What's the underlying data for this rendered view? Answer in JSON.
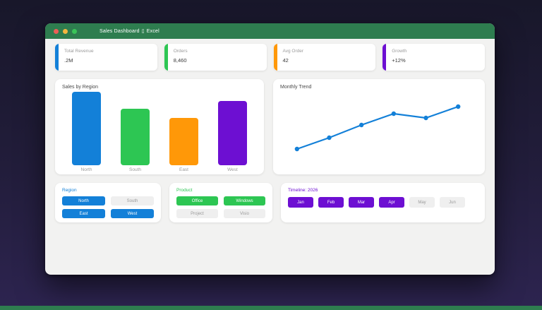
{
  "window": {
    "title_name": "Sales Dashboard",
    "title_separator": "▯",
    "title_app": "Excel",
    "titlebar_color": "#2e7d4f"
  },
  "traffic_lights": {
    "close_color": "#ed5f57",
    "minimize_color": "#f4b63f",
    "maximize_color": "#3ac459"
  },
  "kpis": [
    {
      "label": "Total Revenue",
      "value": ".2M",
      "accent": "#1380d8"
    },
    {
      "label": "Orders",
      "value": "8,460",
      "accent": "#2dc653"
    },
    {
      "label": "Avg Order",
      "value": "42",
      "accent": "#ff9808"
    },
    {
      "label": "Growth",
      "value": "+12%",
      "accent": "#6d0fd2"
    }
  ],
  "chart_data": [
    {
      "type": "bar",
      "title": "Sales by Region",
      "categories": [
        "North",
        "South",
        "East",
        "West"
      ],
      "values": [
        100,
        77,
        65,
        88
      ],
      "colors": [
        "#1380d8",
        "#2dc653",
        "#ff9808",
        "#6d0fd2"
      ],
      "ylim": [
        0,
        106
      ],
      "grid": false,
      "legend": false
    },
    {
      "type": "line",
      "title": "Monthly Trend",
      "x": [
        1,
        2,
        3,
        4,
        5,
        6
      ],
      "values": [
        30,
        38,
        47,
        55,
        52,
        60
      ],
      "color": "#1380d8",
      "ylim": [
        30,
        60
      ],
      "grid": false,
      "legend": false,
      "markers": true
    }
  ],
  "filters": [
    {
      "title": "Region",
      "accent": "#1380d8",
      "layout": "grid",
      "options": [
        {
          "label": "North",
          "selected": true
        },
        {
          "label": "South",
          "selected": false
        },
        {
          "label": "East",
          "selected": true
        },
        {
          "label": "West",
          "selected": true
        }
      ]
    },
    {
      "title": "Product",
      "accent": "#2dc653",
      "layout": "grid",
      "options": [
        {
          "label": "Office",
          "selected": true
        },
        {
          "label": "Windows",
          "selected": true
        },
        {
          "label": "Project",
          "selected": false
        },
        {
          "label": "Visio",
          "selected": false
        }
      ]
    },
    {
      "title": "Timeline: 2026",
      "accent": "#6d0fd2",
      "layout": "row",
      "options": [
        {
          "label": "Jan",
          "selected": true
        },
        {
          "label": "Feb",
          "selected": true
        },
        {
          "label": "Mar",
          "selected": true
        },
        {
          "label": "Apr",
          "selected": true
        },
        {
          "label": "May",
          "selected": false
        },
        {
          "label": "Jun",
          "selected": false
        }
      ]
    }
  ],
  "colors": {
    "background_top": "#18172a",
    "background_bottom": "#2d2450",
    "titlebar_green": "#2e7d4f",
    "bottom_strip_green": "#2e7d4f",
    "window_bg": "#f2f2f1",
    "unselected_btn_bg": "#efefef",
    "unselected_btn_text": "#9b9b9b"
  }
}
